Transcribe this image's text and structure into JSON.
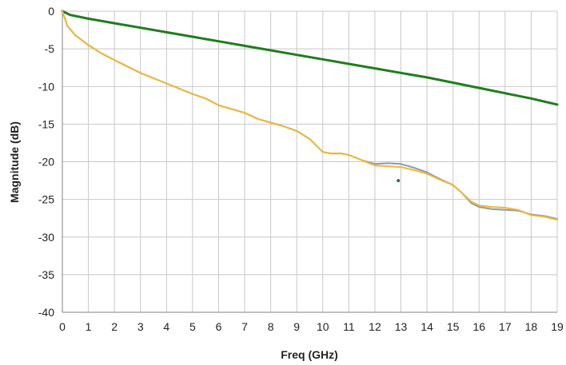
{
  "chart_data": {
    "type": "line",
    "title": "",
    "xlabel": "Freq (GHz)",
    "ylabel": "Magnitude (dB)",
    "xlim": [
      0,
      19
    ],
    "ylim": [
      -40,
      0
    ],
    "xticks": [
      0,
      1,
      2,
      3,
      4,
      5,
      6,
      7,
      8,
      9,
      10,
      11,
      12,
      13,
      14,
      15,
      16,
      17,
      18,
      19
    ],
    "yticks": [
      0,
      -5,
      -10,
      -15,
      -20,
      -25,
      -30,
      -35,
      -40
    ],
    "grid": true,
    "legend": "none",
    "series": [
      {
        "color": "#1e7d1e",
        "x": [
          0,
          0.3,
          1,
          2,
          3,
          4,
          5,
          6,
          7,
          8,
          9,
          10,
          11,
          12,
          13,
          14,
          15,
          16,
          17,
          18,
          19
        ],
        "y": [
          0,
          -0.5,
          -1.0,
          -1.6,
          -2.2,
          -2.8,
          -3.4,
          -4.0,
          -4.6,
          -5.2,
          -5.8,
          -6.4,
          -7.0,
          -7.6,
          -8.2,
          -8.8,
          -9.5,
          -10.2,
          -10.9,
          -11.6,
          -12.4
        ]
      },
      {
        "color": "#8a9bb0",
        "x": [
          0,
          0.2,
          0.5,
          1,
          1.5,
          2,
          3,
          4,
          5,
          5.5,
          6,
          6.5,
          7,
          7.5,
          8,
          8.5,
          9,
          9.5,
          10,
          10.3,
          10.7,
          11,
          11.5,
          12,
          12.5,
          13,
          13.5,
          14,
          14.5,
          15,
          15.3,
          15.7,
          16,
          16.5,
          17,
          17.5,
          18,
          18.5,
          19
        ],
        "y": [
          0,
          -2.0,
          -3.2,
          -4.5,
          -5.6,
          -6.5,
          -8.2,
          -9.6,
          -11.0,
          -11.6,
          -12.5,
          -13.0,
          -13.5,
          -14.3,
          -14.8,
          -15.3,
          -15.9,
          -17.0,
          -18.7,
          -18.9,
          -18.9,
          -19.1,
          -19.8,
          -20.3,
          -20.2,
          -20.3,
          -20.8,
          -21.4,
          -22.3,
          -23.1,
          -24.0,
          -25.5,
          -26.0,
          -26.3,
          -26.4,
          -26.5,
          -27.0,
          -27.2,
          -27.6
        ]
      },
      {
        "color": "#f2b632",
        "x": [
          0,
          0.2,
          0.5,
          1,
          1.5,
          2,
          3,
          4,
          5,
          5.5,
          6,
          6.5,
          7,
          7.5,
          8,
          8.5,
          9,
          9.5,
          10,
          10.3,
          10.7,
          11,
          11.5,
          12,
          12.5,
          13,
          13.5,
          14,
          14.5,
          15,
          15.3,
          15.7,
          16,
          16.5,
          17,
          17.5,
          18,
          18.5,
          19
        ],
        "y": [
          0,
          -2.0,
          -3.2,
          -4.5,
          -5.6,
          -6.5,
          -8.2,
          -9.6,
          -11.0,
          -11.6,
          -12.5,
          -13.0,
          -13.5,
          -14.3,
          -14.8,
          -15.3,
          -15.9,
          -17.0,
          -18.7,
          -18.9,
          -18.9,
          -19.1,
          -19.8,
          -20.5,
          -20.6,
          -20.7,
          -21.1,
          -21.6,
          -22.4,
          -23.1,
          -24.0,
          -25.3,
          -25.8,
          -26.0,
          -26.1,
          -26.4,
          -27.1,
          -27.3,
          -27.7
        ]
      }
    ],
    "annotations": [
      {
        "x": 12.9,
        "y": -22.5,
        "color": "#1e7d1e",
        "kind": "point"
      }
    ]
  }
}
